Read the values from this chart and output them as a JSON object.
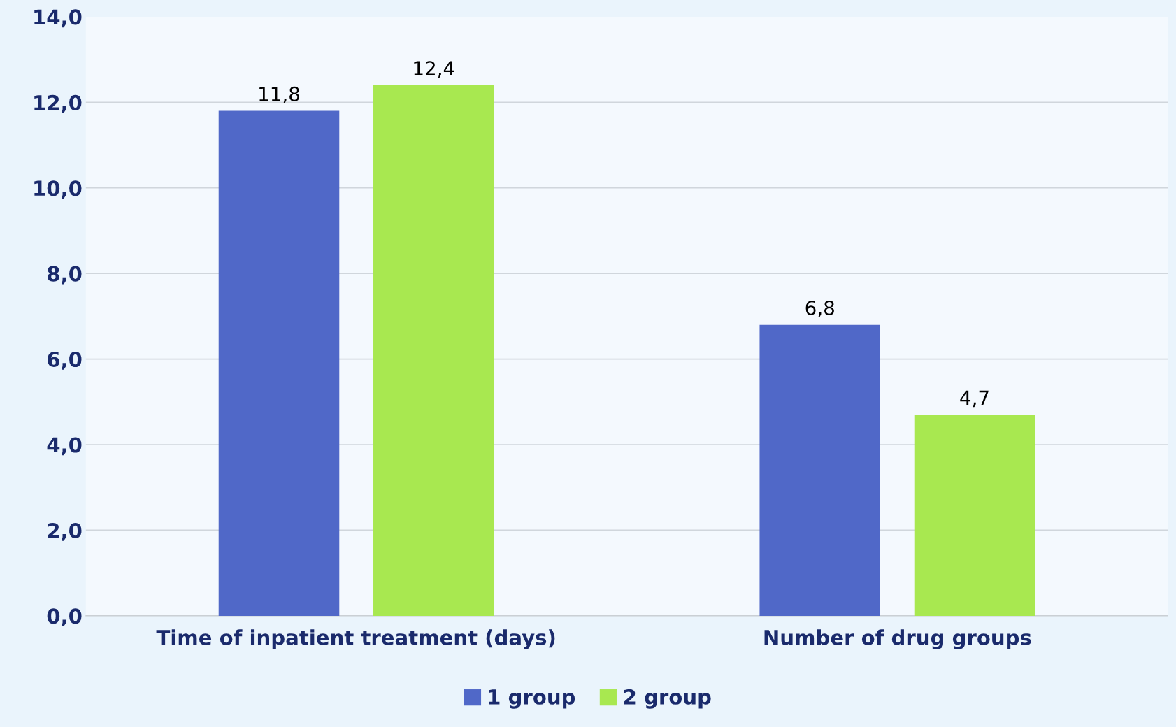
{
  "chart_data": {
    "type": "bar",
    "categories": [
      "Time of inpatient treatment (days)",
      "Number of drug groups"
    ],
    "series": [
      {
        "name": "1 group",
        "color": "#5068c8",
        "values": [
          11.8,
          6.8
        ],
        "value_labels": [
          "11,8",
          "6,8"
        ]
      },
      {
        "name": "2 group",
        "color": "#a8e850",
        "values": [
          12.4,
          4.7
        ],
        "value_labels": [
          "12,4",
          "4,7"
        ]
      }
    ],
    "ylim": [
      0,
      14
    ],
    "yticks": [
      {
        "value": 0,
        "label": "0,0"
      },
      {
        "value": 2,
        "label": "2,0"
      },
      {
        "value": 4,
        "label": "4,0"
      },
      {
        "value": 6,
        "label": "6,0"
      },
      {
        "value": 8,
        "label": "8,0"
      },
      {
        "value": 10,
        "label": "10,0"
      },
      {
        "value": 12,
        "label": "12,0"
      },
      {
        "value": 14,
        "label": "14,0"
      }
    ],
    "grid": "y",
    "legend": "bottom"
  }
}
